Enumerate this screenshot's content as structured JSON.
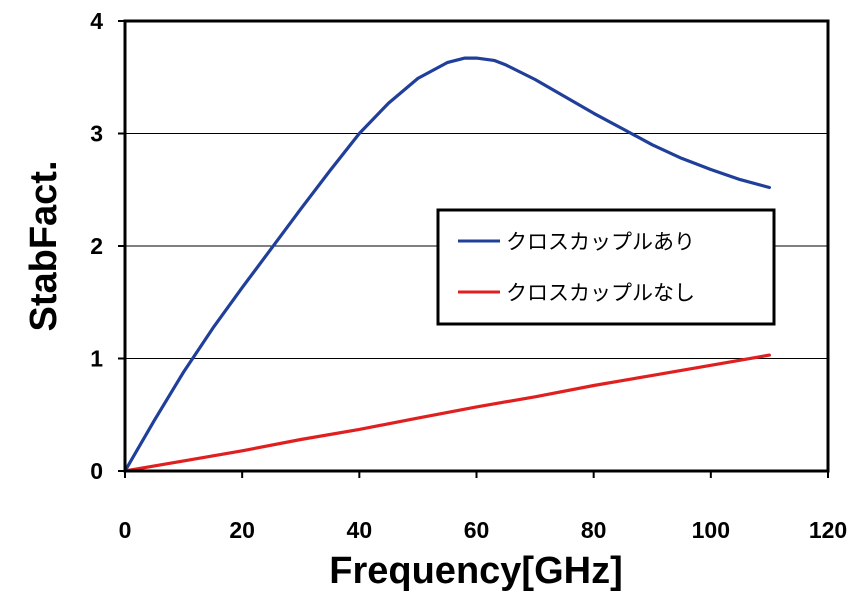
{
  "chart_data": {
    "type": "line",
    "title": "",
    "xlabel": "Frequency[GHz]",
    "ylabel": "StabFact.",
    "xlim": [
      0,
      120
    ],
    "ylim": [
      0,
      4
    ],
    "x_ticks": [
      "0",
      "20",
      "40",
      "60",
      "80",
      "100",
      "120"
    ],
    "y_ticks": [
      "0",
      "1",
      "2",
      "3",
      "4"
    ],
    "grid": "horizontal",
    "legend_position": "right",
    "series": [
      {
        "name": "クロスカップルあり",
        "color": "#1f3f9a",
        "x": [
          0,
          5,
          10,
          15,
          20,
          25,
          30,
          35,
          40,
          45,
          50,
          55,
          58,
          60,
          63,
          65,
          70,
          75,
          80,
          85,
          90,
          95,
          100,
          105,
          110
        ],
        "y": [
          0,
          0.45,
          0.88,
          1.27,
          1.63,
          1.98,
          2.33,
          2.67,
          3.0,
          3.27,
          3.49,
          3.63,
          3.67,
          3.67,
          3.65,
          3.61,
          3.48,
          3.33,
          3.18,
          3.04,
          2.9,
          2.78,
          2.68,
          2.59,
          2.52
        ]
      },
      {
        "name": "クロスカップルなし",
        "color": "#e02020",
        "x": [
          0,
          10,
          20,
          30,
          40,
          50,
          60,
          70,
          80,
          90,
          100,
          110
        ],
        "y": [
          0,
          0.09,
          0.18,
          0.28,
          0.37,
          0.47,
          0.57,
          0.66,
          0.76,
          0.85,
          0.94,
          1.03
        ]
      }
    ]
  }
}
